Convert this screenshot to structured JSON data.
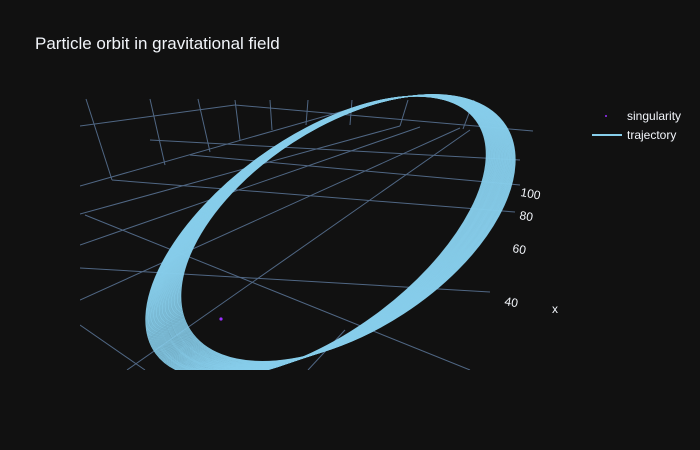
{
  "chart_data": {
    "type": "scatter3d",
    "title": "Particle orbit in gravitational field",
    "scene": {
      "xaxis": {
        "title": "x",
        "tick_labels": [
          "40",
          "60",
          "80",
          "100"
        ]
      },
      "yaxis": {
        "title": "",
        "tick_labels": []
      },
      "zaxis": {
        "title": "",
        "tick_labels": []
      },
      "grid": true,
      "background": "#111111",
      "grid_color": "#506784"
    },
    "series": [
      {
        "name": "singularity",
        "mode": "markers",
        "color": "#9b30ff",
        "points": [
          [
            0,
            0,
            0
          ]
        ]
      },
      {
        "name": "trajectory",
        "mode": "lines",
        "color": "#87ceeb",
        "shape": "precessing ellipse (many overlapping loops)",
        "turns": 48
      }
    ],
    "legend": {
      "placement": "top-right"
    }
  }
}
